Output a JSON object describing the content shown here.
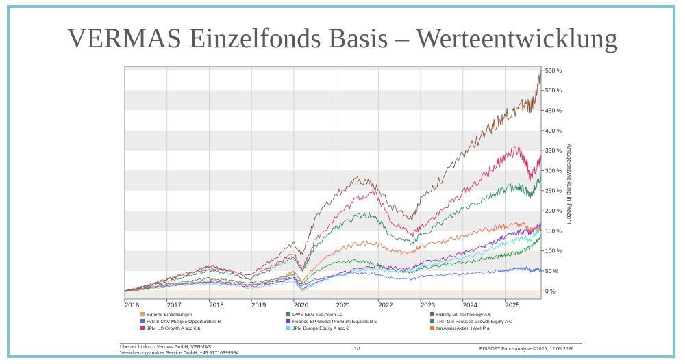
{
  "page": {
    "title": "VERMAS Einzelfonds Basis – Werteentwicklung"
  },
  "footer": {
    "left_line1": "Überreicht durch Vermas GmbH, VERMAS",
    "left_line2": "Versicherungsmakler Service GmbH, +49 81716399994",
    "center": "1/1",
    "right": "EDISOFT Fondsanalyse ©2026, 12.05.2026"
  },
  "chart_data": {
    "type": "line",
    "title": "",
    "xlabel": "",
    "ylabel": "Anlageentwicklung in Prozent",
    "x_ticks": [
      "2016",
      "2017",
      "2018",
      "2019",
      "2020",
      "2021",
      "2022",
      "2023",
      "2024",
      "2025"
    ],
    "y_ticks": [
      "0 %",
      "50 %",
      "100 %",
      "150 %",
      "200 %",
      "250 %",
      "300 %",
      "350 %",
      "400 %",
      "450 %",
      "500 %",
      "550 %"
    ],
    "xlim": [
      2016.0,
      2025.85
    ],
    "ylim": [
      -20,
      560
    ],
    "y_axis_side": "right",
    "grid": "horizontal alternating bands",
    "legend_placement": "bottom",
    "x": [
      2016.0,
      2016.5,
      2017.0,
      2017.5,
      2018.0,
      2018.5,
      2018.95,
      2019.5,
      2020.0,
      2020.2,
      2020.5,
      2021.0,
      2021.5,
      2021.9,
      2022.3,
      2022.8,
      2023.0,
      2023.5,
      2024.0,
      2024.5,
      2024.8,
      2025.0,
      2025.3,
      2025.5,
      2025.6,
      2025.75,
      2025.85
    ],
    "series": [
      {
        "name": "Summe Einzahlungen",
        "color": "#f2a23c",
        "values": [
          0,
          0,
          0,
          0,
          0,
          0,
          0,
          0,
          0,
          0,
          0,
          0,
          0,
          0,
          0,
          0,
          0,
          0,
          0,
          0,
          0,
          0,
          0,
          0,
          0,
          0,
          0
        ]
      },
      {
        "name": "FvS SICAV Multiple Opportunities R",
        "color": "#4a6cf7",
        "values": [
          0,
          5,
          12,
          18,
          22,
          20,
          14,
          24,
          34,
          12,
          30,
          40,
          45,
          44,
          32,
          30,
          36,
          40,
          42,
          45,
          50,
          52,
          56,
          58,
          50,
          54,
          52
        ]
      },
      {
        "name": "JPM US Growth A acc €-h",
        "color": "#e0306a",
        "values": [
          0,
          12,
          28,
          42,
          58,
          50,
          30,
          62,
          95,
          55,
          125,
          185,
          230,
          250,
          175,
          140,
          160,
          200,
          245,
          285,
          315,
          335,
          350,
          320,
          280,
          310,
          330
        ]
      },
      {
        "name": "DWS ESG Top Asien LC",
        "color": "#2a9a3a",
        "values": [
          0,
          8,
          18,
          24,
          32,
          26,
          20,
          28,
          40,
          18,
          48,
          72,
          75,
          68,
          52,
          46,
          56,
          64,
          70,
          80,
          86,
          90,
          95,
          105,
          110,
          125,
          140
        ]
      },
      {
        "name": "Robeco BP Global Premium Equities B €",
        "color": "#8a2be2",
        "values": [
          0,
          6,
          14,
          18,
          22,
          18,
          10,
          20,
          30,
          5,
          22,
          40,
          55,
          62,
          58,
          55,
          70,
          78,
          95,
          112,
          125,
          135,
          145,
          150,
          142,
          162,
          168
        ]
      },
      {
        "name": "JPM Europe Equity A acc €",
        "color": "#5ee0e8",
        "values": [
          0,
          4,
          12,
          16,
          18,
          14,
          6,
          14,
          24,
          0,
          18,
          38,
          50,
          56,
          50,
          48,
          60,
          70,
          82,
          96,
          110,
          120,
          128,
          132,
          125,
          148,
          158
        ]
      },
      {
        "name": "Fidelity Gl. Technology A €",
        "color": "#8b5a3c",
        "values": [
          0,
          12,
          30,
          45,
          60,
          52,
          38,
          78,
          120,
          90,
          180,
          240,
          275,
          265,
          210,
          180,
          230,
          280,
          340,
          390,
          420,
          435,
          455,
          470,
          455,
          500,
          540
        ]
      },
      {
        "name": "TRP Glo Focused Growth Equity A €",
        "color": "#2e8b6b",
        "values": [
          0,
          10,
          24,
          38,
          52,
          44,
          28,
          56,
          85,
          50,
          110,
          160,
          185,
          190,
          135,
          120,
          140,
          170,
          205,
          230,
          245,
          255,
          262,
          250,
          236,
          265,
          285
        ]
      },
      {
        "name": "terrAssisi Aktien I AMI P a",
        "color": "#f07040",
        "values": [
          0,
          6,
          16,
          20,
          26,
          22,
          14,
          24,
          48,
          22,
          60,
          100,
          118,
          120,
          100,
          96,
          112,
          122,
          138,
          150,
          158,
          162,
          166,
          162,
          150,
          158,
          155
        ]
      }
    ]
  }
}
